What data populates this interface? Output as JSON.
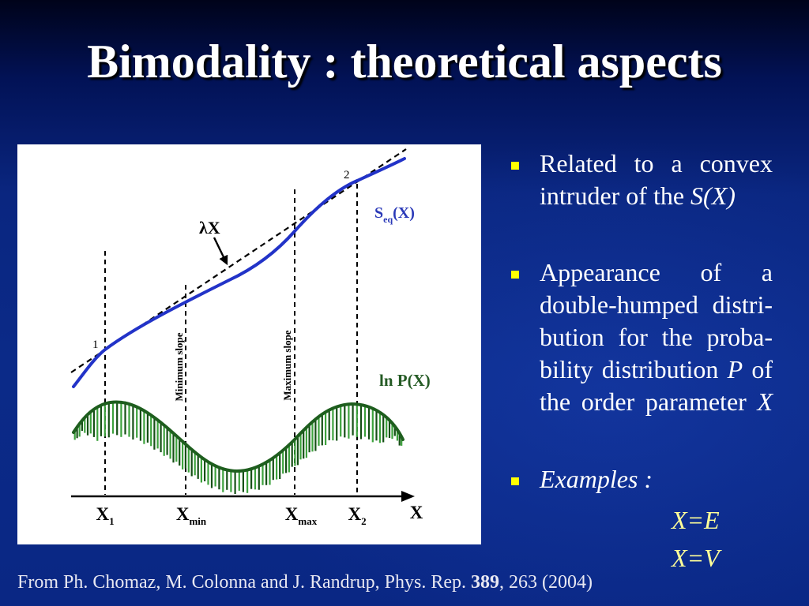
{
  "slide": {
    "title": "Bimodality : theoretical aspects",
    "colors": {
      "background_top": "#00031a",
      "background_bottom": "#0b2a88",
      "title_text": "#ffffff",
      "body_text": "#ffffff",
      "bullet_marker": "#ffff00",
      "example_text": "#ffff99"
    }
  },
  "figure": {
    "point_1_label": "1",
    "point_2_label": "2",
    "tangent_label": "λX",
    "entropy_label": {
      "main": "S",
      "sub": "eq",
      "suffix": "(X)"
    },
    "log_probability_label": "ln P(X)",
    "minimum_slope_label": "Minimum slope",
    "maximum_slope_label": "Maximum slope",
    "axis_ticks": [
      {
        "main": "X",
        "sub": "1"
      },
      {
        "main": "X",
        "sub": "min"
      },
      {
        "main": "X",
        "sub": "max"
      },
      {
        "main": "X",
        "sub": "2"
      }
    ],
    "axis_title": "X",
    "colors": {
      "entropy_curve": "#2233c8",
      "entropy_label": "#2b3ab8",
      "log_probability_curve": "#1e5e1e",
      "log_probability_label": "#245a24",
      "hatching_light": "#3da23d",
      "hatching_dark": "#155015",
      "lines": "#000000"
    }
  },
  "bullets": [
    {
      "line_1": "Related to a convex",
      "line_2": "intruder of the ",
      "line_2_italic": "S(X)"
    },
    {
      "line_1": "Appearance of a",
      "line_2": "double-humped distri-",
      "line_3": "bution for the proba-",
      "line_4": "bility distribution ",
      "line_4_italic": "P",
      "line_4_end": " of",
      "line_5": "the order parameter ",
      "line_5_italic": "X"
    },
    {
      "line_1_italic": "Examples :"
    }
  ],
  "examples": [
    "X=E",
    "X=V"
  ],
  "citation": {
    "prefix": "From Ph. Chomaz, M. Colonna and J. Randrup, Phys. Rep. ",
    "volume": "389",
    "suffix": ", 263 (2004)"
  }
}
